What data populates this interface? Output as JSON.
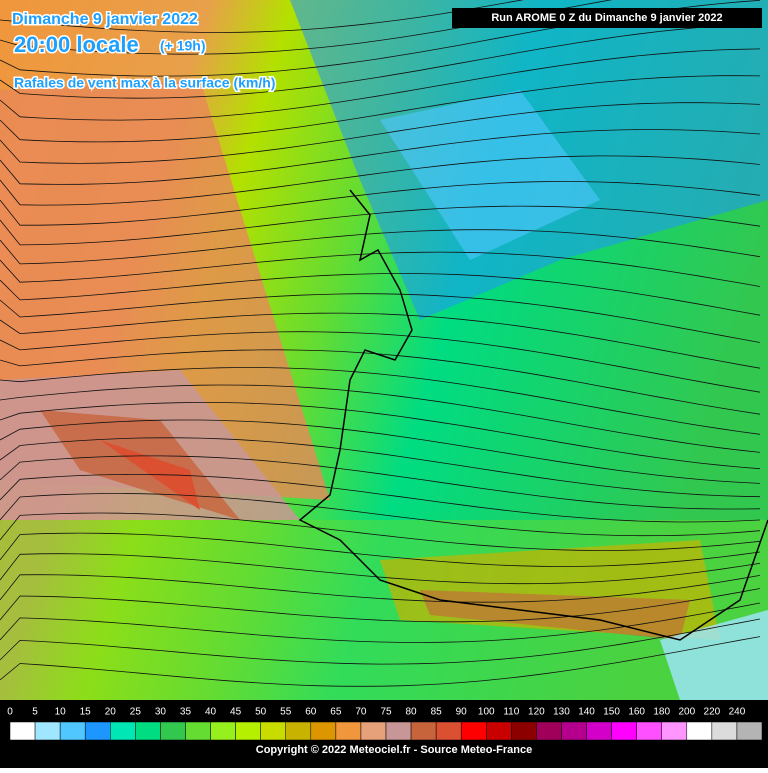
{
  "header": {
    "date": "Dimanche 9 janvier 2022",
    "time": "20:00 locale",
    "offset": "(+ 19h)",
    "parameter": "Rafales de vent max à la surface (km/h)",
    "run": "Run AROME 0 Z du Dimanche 9 janvier 2022"
  },
  "legend": {
    "items": [
      {
        "label": "0",
        "color": "#ffffff"
      },
      {
        "label": "5",
        "color": "#a0e6ff"
      },
      {
        "label": "10",
        "color": "#50c8ff"
      },
      {
        "label": "15",
        "color": "#1e96ff"
      },
      {
        "label": "20",
        "color": "#00e6b4"
      },
      {
        "label": "25",
        "color": "#00dc82"
      },
      {
        "label": "30",
        "color": "#32c850"
      },
      {
        "label": "35",
        "color": "#64dc32"
      },
      {
        "label": "40",
        "color": "#96f01e"
      },
      {
        "label": "45",
        "color": "#b4f000"
      },
      {
        "label": "50",
        "color": "#c8dc00"
      },
      {
        "label": "55",
        "color": "#c8b400"
      },
      {
        "label": "60",
        "color": "#dc9600"
      },
      {
        "label": "65",
        "color": "#f0963c"
      },
      {
        "label": "70",
        "color": "#e6a07a"
      },
      {
        "label": "75",
        "color": "#c89696"
      },
      {
        "label": "80",
        "color": "#c8643c"
      },
      {
        "label": "85",
        "color": "#dc5032"
      },
      {
        "label": "90",
        "color": "#ff0000"
      },
      {
        "label": "100",
        "color": "#c80000"
      },
      {
        "label": "110",
        "color": "#8c0000"
      },
      {
        "label": "120",
        "color": "#a0005a"
      },
      {
        "label": "130",
        "color": "#b4008c"
      },
      {
        "label": "140",
        "color": "#d200c8"
      },
      {
        "label": "150",
        "color": "#ff00ff"
      },
      {
        "label": "160",
        "color": "#ff50ff"
      },
      {
        "label": "180",
        "color": "#ff96ff"
      },
      {
        "label": "200",
        "color": "#ffffff"
      },
      {
        "label": "220",
        "color": "#dcdcdc"
      },
      {
        "label": "240",
        "color": "#b4b4b4"
      }
    ]
  },
  "footer": {
    "copyright": "Copyright © 2022 Meteociel.fr - Source Meteo-France"
  }
}
